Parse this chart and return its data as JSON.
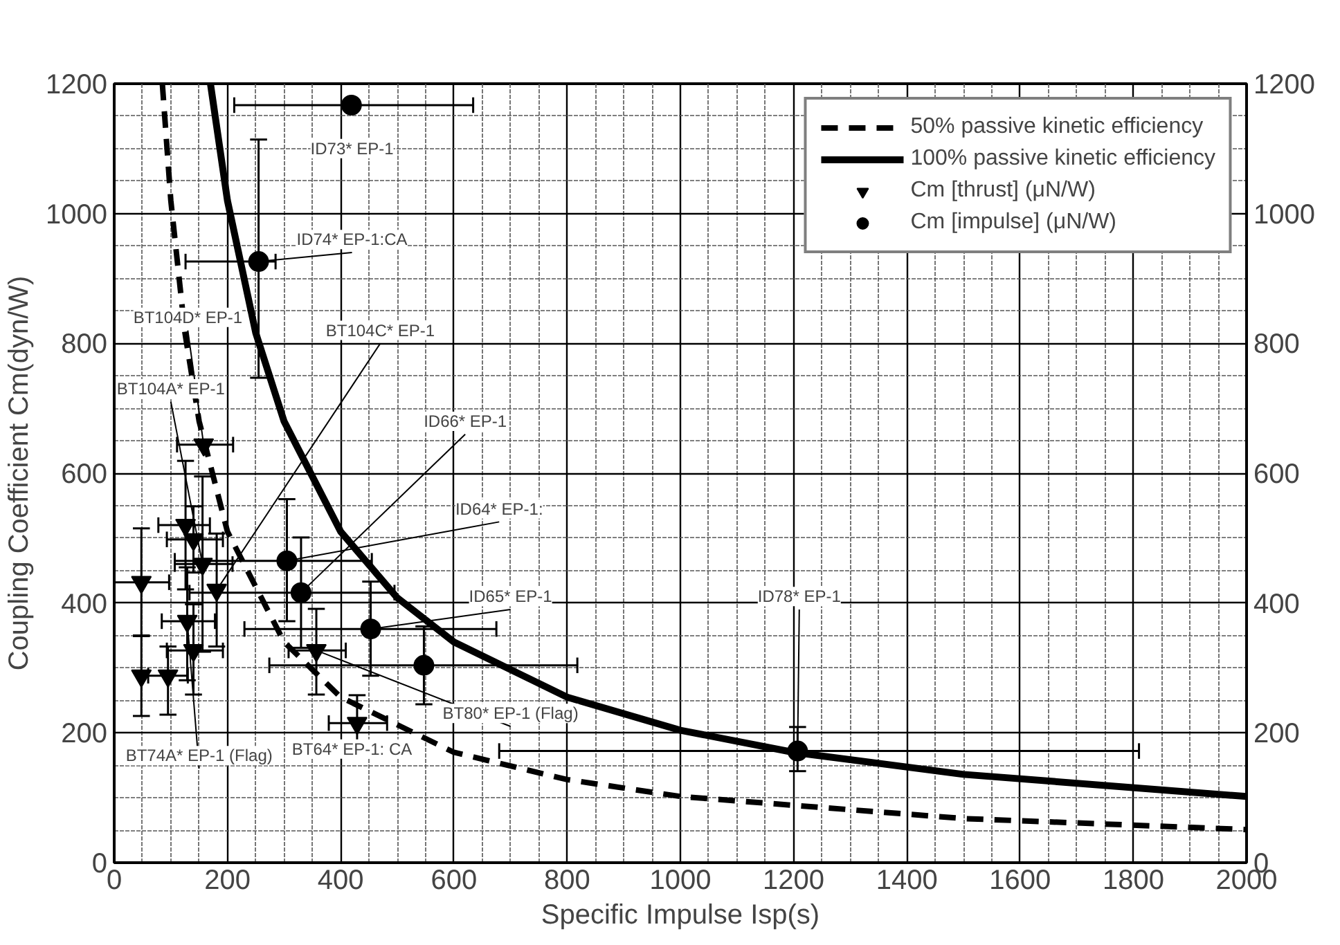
{
  "chart_data": {
    "type": "scatter",
    "xlabel": "Specific Impulse Isp(s)",
    "ylabel": "Coupling Coefficient Cm(dyn/W)",
    "xlim": [
      0,
      2000
    ],
    "xticks": [
      0,
      200,
      400,
      600,
      800,
      1000,
      1200,
      1400,
      1600,
      1800,
      2000
    ],
    "ylim": [
      0,
      1200
    ],
    "yticks": [
      0,
      200,
      400,
      600,
      800,
      1000,
      1200
    ],
    "y2lim": [
      0,
      1200
    ],
    "y2ticks": [
      0,
      200,
      400,
      600,
      800,
      1000,
      1200
    ],
    "grid": true,
    "legend": "top right",
    "series": [
      {
        "name": "50% passive kinetic efficiency",
        "type": "line",
        "line_style": "dashed",
        "marker": "none",
        "color": "#000000",
        "x": [
          85,
          100,
          125,
          150,
          200,
          300,
          400,
          600,
          800,
          1000,
          1500,
          2000
        ],
        "values": [
          1200,
          1020,
          816,
          680,
          510,
          340,
          255,
          170,
          128,
          102,
          68,
          51
        ]
      },
      {
        "name": "100% passive kinetic efficiency",
        "type": "line",
        "line_style": "solid",
        "marker": "none",
        "color": "#000000",
        "x": [
          170,
          200,
          250,
          300,
          400,
          500,
          600,
          800,
          1000,
          1200,
          1500,
          2000
        ],
        "values": [
          1200,
          1020,
          816,
          680,
          510,
          408,
          340,
          255,
          204,
          170,
          136,
          102
        ]
      },
      {
        "name": "Cm [thrust] (μN/W)",
        "marker": "triangle",
        "color": "#000000",
        "x": [
          158,
          126,
          140,
          156,
          181,
          48,
          48,
          95,
          129,
          140,
          357,
          429
        ],
        "values": [
          644,
          520,
          498,
          460,
          420,
          432,
          288,
          288,
          372,
          327,
          327,
          215
        ],
        "errors": [
          null,
          [
            421,
            619
          ],
          [
            447,
            549
          ],
          [
            325,
            595
          ],
          [
            333,
            507
          ],
          [
            349,
            515
          ],
          [
            226,
            350
          ],
          [
            228,
            333
          ],
          [
            281,
            455
          ],
          [
            259,
            398
          ],
          [
            259,
            391
          ],
          [
            172,
            258
          ]
        ],
        "xerrors": [
          [
            111,
            210
          ],
          [
            78,
            169
          ],
          [
            93,
            192
          ],
          [
            107,
            209
          ],
          null,
          [
            0,
            97
          ],
          null,
          [
            60,
            130
          ],
          [
            84,
            178
          ],
          [
            93,
            192
          ],
          [
            308,
            409
          ],
          [
            379,
            482
          ]
        ]
      },
      {
        "name": "Cm [impulse] (μN/W)",
        "marker": "circle",
        "color": "#000000",
        "x": [
          419,
          255,
          305,
          330,
          453,
          547,
          1207
        ],
        "values": [
          1167,
          926,
          465,
          416,
          360,
          304,
          172
        ],
        "errors": [
          null,
          [
            747,
            1114
          ],
          [
            372,
            560
          ],
          [
            331,
            501
          ],
          [
            288,
            433
          ],
          [
            244,
            364
          ],
          [
            141,
            209
          ]
        ],
        "xerrors": [
          [
            212,
            634
          ],
          [
            126,
            285
          ],
          [
            107,
            455
          ],
          [
            133,
            495
          ],
          [
            230,
            675
          ],
          [
            274,
            818
          ],
          [
            680,
            1810
          ]
        ]
      }
    ],
    "annotations": [
      {
        "text": "ID73* EP-1",
        "x": 419,
        "y": 1167
      },
      {
        "text": "ID74* EP-1:CA",
        "x": 255,
        "y": 926
      },
      {
        "text": "BT104C* EP-1",
        "x": 181,
        "y": 420
      },
      {
        "text": "BT104D* EP-1",
        "x": 158,
        "y": 644
      },
      {
        "text": "ID66* EP-1",
        "x": 330,
        "y": 416
      },
      {
        "text": "BT104A* EP-1",
        "x": 156,
        "y": 460
      },
      {
        "text": "ID64* EP-1:",
        "x": 305,
        "y": 465
      },
      {
        "text": "ID65* EP-1",
        "x": 453,
        "y": 360
      },
      {
        "text": "BT74A* EP-1 (Flag)",
        "x": 129,
        "y": 372
      },
      {
        "text": "BT80* EP-1 (Flag)",
        "x": 357,
        "y": 327
      },
      {
        "text": "BT64* EP-1: CA",
        "x": 429,
        "y": 215
      },
      {
        "text": "ID78* EP-1",
        "x": 1207,
        "y": 172
      }
    ]
  }
}
